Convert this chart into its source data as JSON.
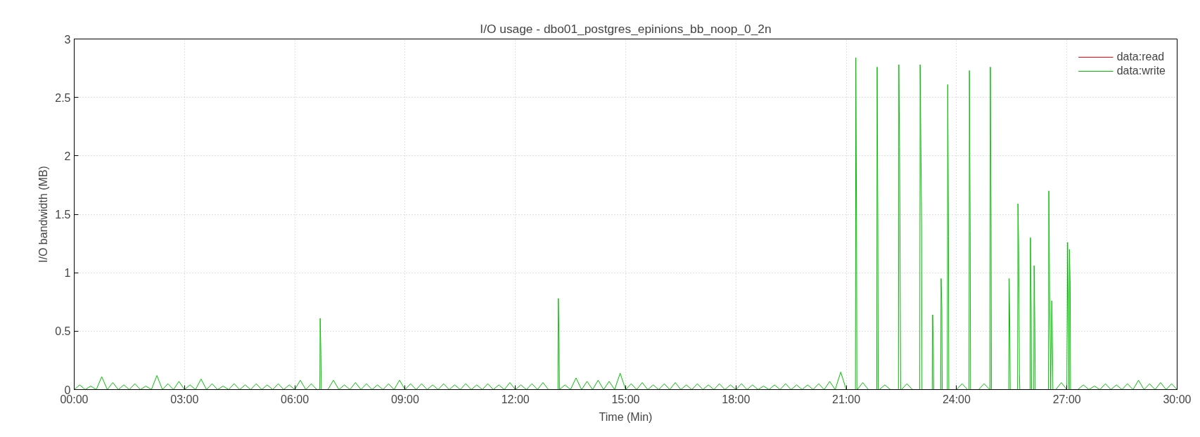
{
  "chart_data": {
    "type": "line",
    "title": "I/O usage - dbo01_postgres_epinions_bb_noop_0_2n",
    "xlabel": "Time (Min)",
    "ylabel": "I/O bandwidth (MB)",
    "xlim": [
      0,
      30
    ],
    "ylim": [
      0,
      3
    ],
    "xticks": [
      {
        "value": 0,
        "label": "00:00"
      },
      {
        "value": 3,
        "label": "03:00"
      },
      {
        "value": 6,
        "label": "06:00"
      },
      {
        "value": 9,
        "label": "09:00"
      },
      {
        "value": 12,
        "label": "12:00"
      },
      {
        "value": 15,
        "label": "15:00"
      },
      {
        "value": 18,
        "label": "18:00"
      },
      {
        "value": 21,
        "label": "21:00"
      },
      {
        "value": 24,
        "label": "24:00"
      },
      {
        "value": 27,
        "label": "27:00"
      },
      {
        "value": 30,
        "label": "30:00"
      }
    ],
    "yticks": [
      0,
      0.5,
      1,
      1.5,
      2,
      2.5,
      3
    ],
    "grid": true,
    "legend": "top right",
    "line_style": "solid",
    "series": [
      {
        "name": "data:read",
        "color": "#ff0000"
      },
      {
        "name": "data:write",
        "color": "#00c000",
        "x": [
          0,
          0.15,
          0.3,
          0.45,
          0.6,
          0.75,
          0.9,
          1.05,
          1.2,
          1.35,
          1.5,
          1.65,
          1.8,
          1.95,
          2.1,
          2.25,
          2.4,
          2.55,
          2.7,
          2.85,
          3.0,
          3.15,
          3.3,
          3.45,
          3.6,
          3.75,
          3.9,
          4.05,
          4.2,
          4.35,
          4.5,
          4.65,
          4.8,
          4.95,
          5.1,
          5.25,
          5.4,
          5.55,
          5.7,
          5.85,
          6.0,
          6.15,
          6.3,
          6.45,
          6.6,
          6.68,
          6.69,
          6.71,
          6.72,
          6.9,
          7.05,
          7.2,
          7.35,
          7.5,
          7.65,
          7.8,
          7.95,
          8.1,
          8.25,
          8.4,
          8.55,
          8.7,
          8.85,
          9.0,
          9.15,
          9.3,
          9.45,
          9.6,
          9.75,
          9.9,
          10.05,
          10.2,
          10.35,
          10.5,
          10.65,
          10.8,
          10.95,
          11.1,
          11.25,
          11.4,
          11.55,
          11.7,
          11.85,
          12.0,
          12.15,
          12.3,
          12.45,
          12.6,
          12.75,
          12.9,
          13.16,
          13.17,
          13.19,
          13.2,
          13.35,
          13.5,
          13.65,
          13.8,
          13.95,
          14.1,
          14.25,
          14.4,
          14.55,
          14.7,
          14.85,
          15.0,
          15.15,
          15.3,
          15.45,
          15.6,
          15.75,
          15.9,
          16.05,
          16.2,
          16.35,
          16.5,
          16.65,
          16.8,
          16.95,
          17.1,
          17.25,
          17.4,
          17.55,
          17.7,
          17.85,
          18.0,
          18.15,
          18.3,
          18.45,
          18.6,
          18.75,
          18.9,
          19.05,
          19.2,
          19.35,
          19.5,
          19.65,
          19.8,
          19.95,
          20.1,
          20.25,
          20.4,
          20.55,
          20.7,
          20.85,
          21.0,
          21.25,
          21.26,
          21.28,
          21.29,
          21.3,
          21.45,
          21.6,
          21.83,
          21.84,
          21.86,
          21.87,
          21.9,
          22.05,
          22.2,
          22.42,
          22.43,
          22.45,
          22.47,
          22.48,
          22.5,
          22.65,
          22.8,
          23.0,
          23.01,
          23.03,
          23.05,
          23.06,
          23.1,
          23.34,
          23.35,
          23.37,
          23.38,
          23.4,
          23.57,
          23.58,
          23.6,
          23.61,
          23.7,
          23.75,
          23.76,
          23.78,
          23.79,
          24.0,
          24.15,
          24.3,
          24.34,
          24.35,
          24.37,
          24.38,
          24.6,
          24.75,
          24.9,
          24.91,
          24.92,
          24.94,
          24.95,
          25.2,
          25.42,
          25.43,
          25.45,
          25.46,
          25.5,
          25.66,
          25.67,
          25.69,
          25.71,
          25.72,
          25.8,
          26.0,
          26.01,
          26.03,
          26.04,
          26.1,
          26.11,
          26.13,
          26.14,
          26.4,
          26.5,
          26.51,
          26.53,
          26.56,
          26.59,
          26.61,
          26.62,
          26.7,
          26.85,
          27.0,
          27.02,
          27.04,
          27.06,
          27.07,
          27.09,
          27.1,
          27.3,
          27.45,
          27.6,
          27.75,
          27.9,
          28.05,
          28.2,
          28.35,
          28.5,
          28.65,
          28.8,
          28.95,
          29.1,
          29.25,
          29.4,
          29.55,
          29.7,
          29.85,
          30
        ],
        "values": [
          0,
          0.04,
          0,
          0.03,
          0,
          0.11,
          0,
          0.06,
          0,
          0.04,
          0,
          0.05,
          0,
          0.03,
          0,
          0.12,
          0,
          0.05,
          0,
          0.07,
          0,
          0.04,
          0,
          0.09,
          0,
          0.05,
          0,
          0.03,
          0,
          0.05,
          0,
          0.04,
          0,
          0.05,
          0,
          0.04,
          0,
          0.05,
          0,
          0.04,
          0,
          0.08,
          0,
          0.05,
          0,
          0,
          0.61,
          0.3,
          0,
          0,
          0.08,
          0,
          0.04,
          0,
          0.06,
          0,
          0.05,
          0,
          0.04,
          0,
          0.05,
          0,
          0.08,
          0,
          0.05,
          0,
          0.05,
          0,
          0.04,
          0,
          0.05,
          0,
          0.04,
          0,
          0.05,
          0,
          0.04,
          0,
          0.05,
          0,
          0.04,
          0,
          0.06,
          0,
          0.04,
          0,
          0.05,
          0,
          0.06,
          0,
          0,
          0.78,
          0.41,
          0,
          0.04,
          0,
          0.1,
          0,
          0.07,
          0,
          0.08,
          0,
          0.07,
          0,
          0.14,
          0,
          0.05,
          0,
          0.06,
          0,
          0.04,
          0,
          0.05,
          0,
          0.06,
          0,
          0.04,
          0,
          0.05,
          0,
          0.04,
          0,
          0.05,
          0,
          0.04,
          0,
          0.05,
          0,
          0.04,
          0,
          0.03,
          0,
          0.04,
          0,
          0.05,
          0,
          0.04,
          0,
          0.04,
          0,
          0.05,
          0,
          0.07,
          0,
          0.15,
          0,
          0,
          2.84,
          1.42,
          0,
          0,
          0.06,
          0,
          0,
          2.76,
          1.38,
          0,
          0,
          0.04,
          0,
          0,
          2.78,
          2.08,
          0.7,
          0,
          0,
          0.05,
          0,
          0,
          2.78,
          2.08,
          1.38,
          0,
          0,
          0,
          0.64,
          0.34,
          0,
          0,
          0,
          0.95,
          0.7,
          0,
          0,
          0,
          2.61,
          1.31,
          0,
          0,
          0.05,
          0,
          0,
          2.73,
          1.36,
          0,
          0,
          0.05,
          0,
          0,
          2.76,
          1.37,
          0,
          0,
          0,
          0.95,
          0.49,
          0,
          0,
          0,
          1.59,
          1.19,
          0.14,
          0,
          0,
          0,
          1.3,
          0.67,
          0,
          0,
          1.06,
          0.53,
          0,
          0,
          0,
          1.7,
          0.85,
          0,
          0.76,
          0.37,
          0,
          0,
          0.06,
          0,
          1.26,
          0.64,
          0,
          1.2,
          0.9,
          0,
          0,
          0.04,
          0,
          0.03,
          0,
          0.05,
          0,
          0.04,
          0,
          0.05,
          0,
          0.08,
          0,
          0.05,
          0,
          0.06,
          0,
          0.05,
          0
        ]
      }
    ]
  }
}
